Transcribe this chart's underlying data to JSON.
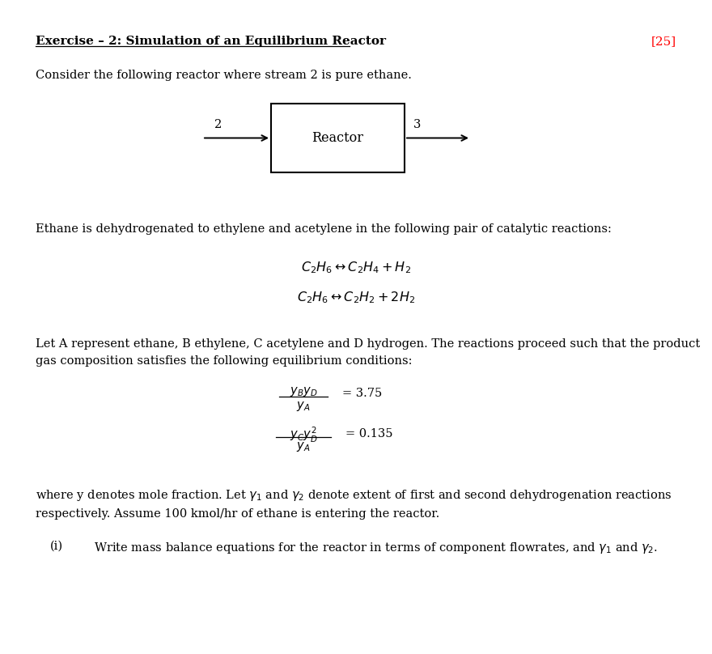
{
  "title": "Exercise – 2: Simulation of an Equilibrium Reactor",
  "title_points": "[25]",
  "title_fontsize": 11,
  "bg_color": "#ffffff",
  "text_color": "#000000",
  "red_color": "#ff0000",
  "body_fontsize": 10.5,
  "para1": "Consider the following reactor where stream 2 is pure ethane.",
  "reactor_label": "Reactor",
  "stream_in": "2",
  "stream_out": "3",
  "para2": "Ethane is dehydrogenated to ethylene and acetylene in the following pair of catalytic reactions:",
  "rxn1": "$C_2H_6 \\leftrightarrow C_2H_4 + H_2$",
  "rxn2": "$C_2H_6 \\leftrightarrow C_2H_2 + 2H_2$",
  "para3": "Let A represent ethane, B ethylene, C acetylene and D hydrogen. The reactions proceed such that the product\ngas composition satisfies the following equilibrium conditions:",
  "eq1_num": "$y_By_D$",
  "eq1_den": "$y_A$",
  "eq1_val": "= 3.75",
  "eq2_num": "$y_Cy_D^2$",
  "eq2_den": "$y_A$",
  "eq2_val": "= 0.135",
  "para4": "where y denotes mole fraction. Let $\\gamma_1$ and $\\gamma_2$ denote extent of first and second dehydrogenation reactions\nrespectively. Assume 100 kmol/hr of ethane is entering the reactor.",
  "item_i": "(i)",
  "item_i_text": "Write mass balance equations for the reactor in terms of component flowrates, and $\\gamma_1$ and $\\gamma_2$."
}
